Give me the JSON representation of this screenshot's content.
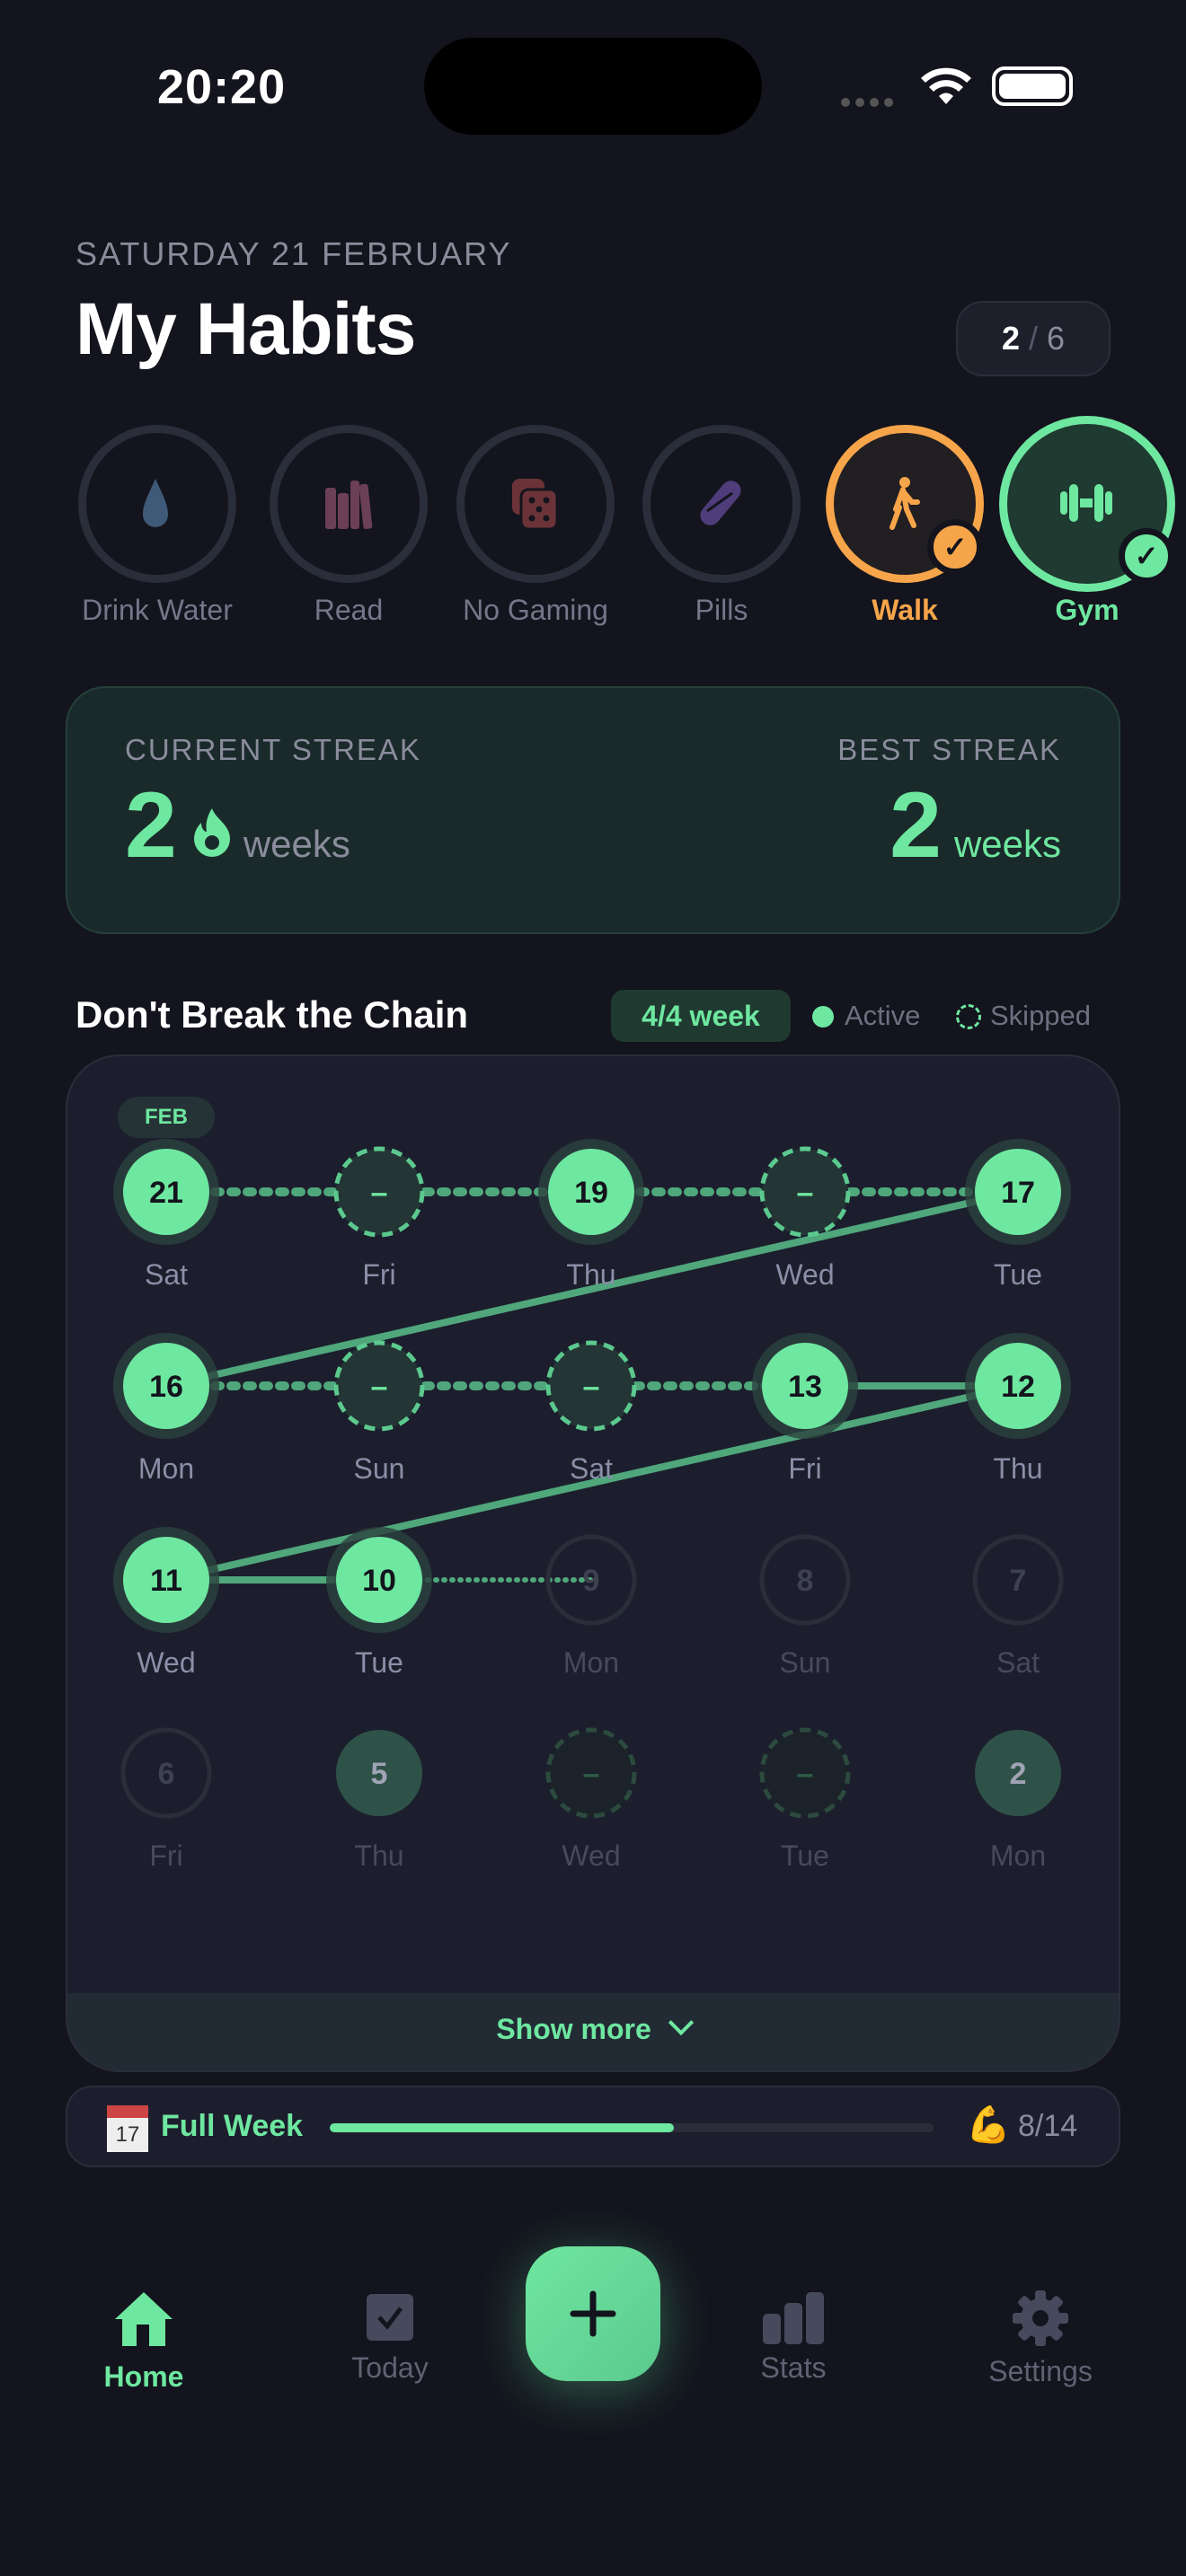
{
  "status": {
    "time": "20:20"
  },
  "header": {
    "date": "SATURDAY 21 FEBRUARY",
    "title": "My Habits",
    "done": "2",
    "separator": "/",
    "total": "6"
  },
  "habits": [
    {
      "label": "Drink Water",
      "icon": "water-drop-icon",
      "color": "#3f5a78",
      "done": false
    },
    {
      "label": "Read",
      "icon": "books-icon",
      "color": "#6b3f55",
      "done": false
    },
    {
      "label": "No Gaming",
      "icon": "dice-icon",
      "color": "#6b3338",
      "done": false
    },
    {
      "label": "Pills",
      "icon": "pill-icon",
      "color": "#4e3d7a",
      "done": false
    },
    {
      "label": "Walk",
      "icon": "walking-icon",
      "color": "#f7a54a",
      "done": true
    },
    {
      "label": "Gym",
      "icon": "dumbbell-icon",
      "color": "#6ee7a0",
      "done": true
    }
  ],
  "streak": {
    "current_label": "CURRENT STREAK",
    "current_value": "2",
    "current_unit": "weeks",
    "best_label": "BEST STREAK",
    "best_value": "2",
    "best_unit": "weeks"
  },
  "chain": {
    "title": "Don't Break the Chain",
    "week_badge": "4/4 week",
    "legend_active": "Active",
    "legend_skipped": "Skipped",
    "month": "FEB",
    "days": [
      {
        "num": "21",
        "dow": "Sat",
        "state": "done"
      },
      {
        "num": "–",
        "dow": "Fri",
        "state": "skipped"
      },
      {
        "num": "19",
        "dow": "Thu",
        "state": "done"
      },
      {
        "num": "–",
        "dow": "Wed",
        "state": "skipped"
      },
      {
        "num": "17",
        "dow": "Tue",
        "state": "done"
      },
      {
        "num": "16",
        "dow": "Mon",
        "state": "done"
      },
      {
        "num": "–",
        "dow": "Sun",
        "state": "skipped"
      },
      {
        "num": "–",
        "dow": "Sat",
        "state": "skipped"
      },
      {
        "num": "13",
        "dow": "Fri",
        "state": "done"
      },
      {
        "num": "12",
        "dow": "Thu",
        "state": "done"
      },
      {
        "num": "11",
        "dow": "Wed",
        "state": "done"
      },
      {
        "num": "10",
        "dow": "Tue",
        "state": "done"
      },
      {
        "num": "9",
        "dow": "Mon",
        "state": "empty"
      },
      {
        "num": "8",
        "dow": "Sun",
        "state": "empty"
      },
      {
        "num": "7",
        "dow": "Sat",
        "state": "empty"
      },
      {
        "num": "6",
        "dow": "Fri",
        "state": "empty"
      },
      {
        "num": "5",
        "dow": "Thu",
        "state": "past-done"
      },
      {
        "num": "–",
        "dow": "Wed",
        "state": "past-skipped"
      },
      {
        "num": "–",
        "dow": "Tue",
        "state": "past-skipped"
      },
      {
        "num": "2",
        "dow": "Mon",
        "state": "past-done"
      }
    ],
    "show_more": "Show more"
  },
  "full_week": {
    "label": "Full Week",
    "progress": 0.57,
    "count": "8/14"
  },
  "tabs": [
    {
      "label": "Home",
      "active": true
    },
    {
      "label": "Today"
    },
    {
      "label": "Stats"
    },
    {
      "label": "Settings"
    }
  ],
  "colors": {
    "accent": "#6ee7a0",
    "walk": "#f7a54a",
    "bg": "#13141d"
  }
}
